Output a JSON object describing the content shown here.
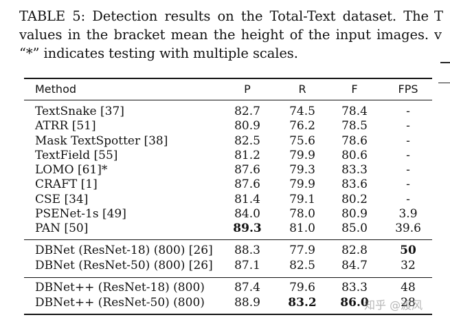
{
  "caption": "TABLE 5: Detection results on the Total-Text dataset. The values in the bracket mean the height of the input images. “*” indicates testing with multiple scales.",
  "cutoff_text": "T v",
  "headers": {
    "method": "Method",
    "p": "P",
    "r": "R",
    "f": "F",
    "fps": "FPS"
  },
  "rows": [
    {
      "method": "TextSnake [37]",
      "p": "82.7",
      "r": "74.5",
      "f": "78.4",
      "fps": "-"
    },
    {
      "method": "ATRR [51]",
      "p": "80.9",
      "r": "76.2",
      "f": "78.5",
      "fps": "-"
    },
    {
      "method": "Mask TextSpotter [38]",
      "p": "82.5",
      "r": "75.6",
      "f": "78.6",
      "fps": "-"
    },
    {
      "method": "TextField [55]",
      "p": "81.2",
      "r": "79.9",
      "f": "80.6",
      "fps": "-"
    },
    {
      "method": "LOMO [61]*",
      "p": "87.6",
      "r": "79.3",
      "f": "83.3",
      "fps": "-"
    },
    {
      "method": "CRAFT [1]",
      "p": "87.6",
      "r": "79.9",
      "f": "83.6",
      "fps": "-"
    },
    {
      "method": "CSE [34]",
      "p": "81.4",
      "r": "79.1",
      "f": "80.2",
      "fps": "-"
    },
    {
      "method": "PSENet-1s [49]",
      "p": "84.0",
      "r": "78.0",
      "f": "80.9",
      "fps": "3.9"
    },
    {
      "method": "PAN [50]",
      "p": "89.3",
      "r": "81.0",
      "f": "85.0",
      "fps": "39.6"
    },
    {
      "method": "DBNet (ResNet-18) (800) [26]",
      "p": "88.3",
      "r": "77.9",
      "f": "82.8",
      "fps": "50"
    },
    {
      "method": "DBNet (ResNet-50) (800) [26]",
      "p": "87.1",
      "r": "82.5",
      "f": "84.7",
      "fps": "32"
    },
    {
      "method": "DBNet++ (ResNet-18) (800)",
      "p": "87.4",
      "r": "79.6",
      "f": "83.3",
      "fps": "48"
    },
    {
      "method": "DBNet++ (ResNet-50) (800)",
      "p": "88.9",
      "r": "83.2",
      "f": "86.0",
      "fps": "28"
    }
  ],
  "bold_cells": [
    "8.p",
    "9.fps",
    "12.r",
    "12.f"
  ],
  "watermark": "知乎 @渡风"
}
